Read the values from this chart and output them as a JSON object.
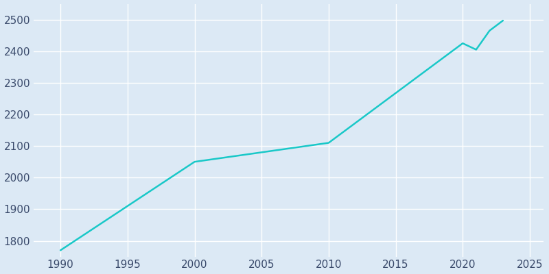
{
  "years": [
    1990,
    2000,
    2005,
    2010,
    2020,
    2021,
    2022,
    2023
  ],
  "population": [
    1770,
    2050,
    2080,
    2110,
    2425,
    2405,
    2465,
    2497
  ],
  "line_color": "#19c8c8",
  "bg_color": "#dce9f5",
  "plot_bg_color": "#dce9f5",
  "grid_color": "#ffffff",
  "tick_label_color": "#3a4a6b",
  "xlim": [
    1988,
    2026
  ],
  "ylim": [
    1750,
    2550
  ],
  "xticks": [
    1990,
    1995,
    2000,
    2005,
    2010,
    2015,
    2020,
    2025
  ],
  "yticks": [
    1800,
    1900,
    2000,
    2100,
    2200,
    2300,
    2400,
    2500
  ],
  "linewidth": 1.8,
  "figsize": [
    8.0,
    4.0
  ],
  "dpi": 100,
  "tick_labelsize": 11,
  "spine_visible": false
}
